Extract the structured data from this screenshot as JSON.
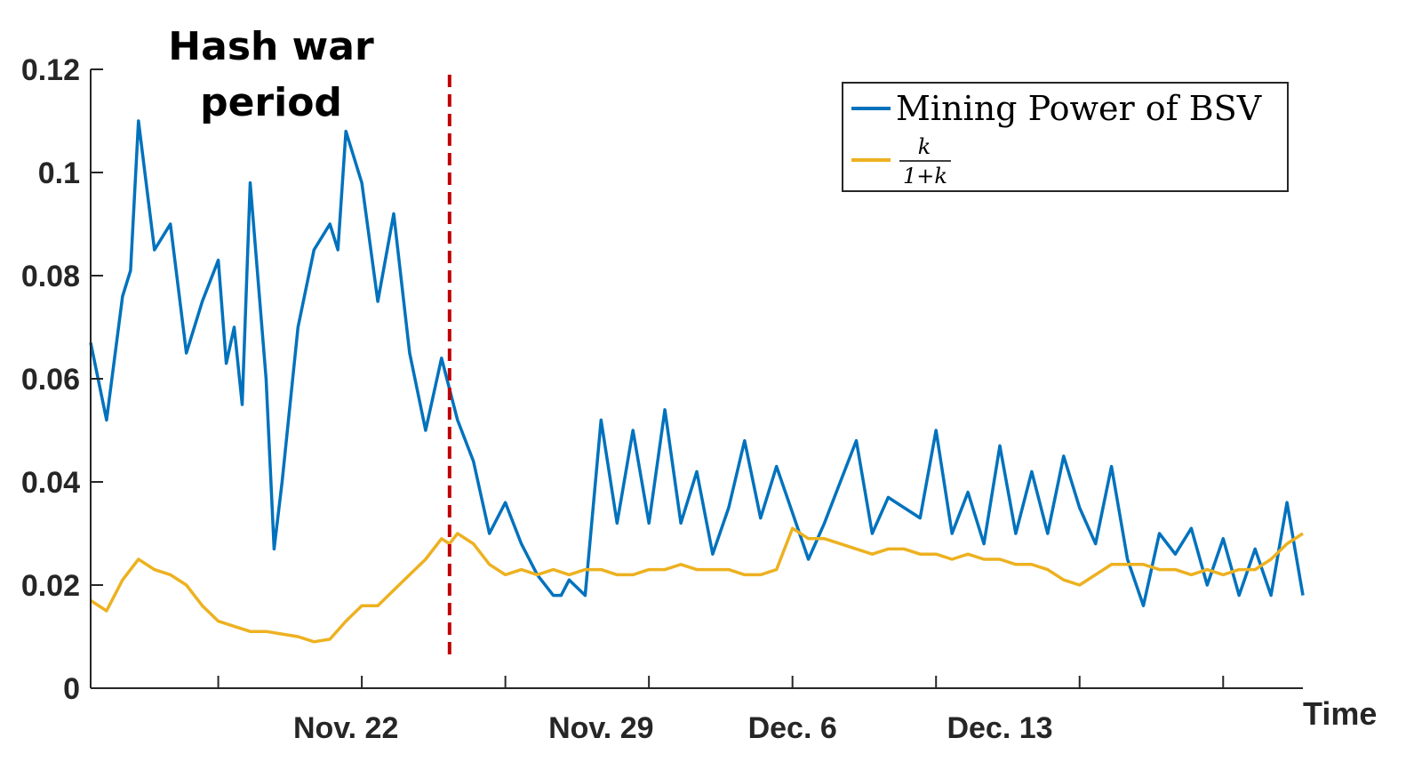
{
  "chart_data": {
    "type": "line",
    "xlabel": "Time",
    "ylabel": "",
    "ylim": [
      0,
      0.12
    ],
    "xlim": [
      "2018-11-12T12:00",
      "2018-12-20T12:00"
    ],
    "yticks": [
      0,
      0.02,
      0.04,
      0.06,
      0.08,
      0.1,
      0.12
    ],
    "ytick_labels": [
      "0",
      "0.02",
      "0.04",
      "0.06",
      "0.08",
      "0.1",
      "0.12"
    ],
    "xticks": [
      "2018-11-16T12:00",
      "2018-11-21T00:00",
      "2018-11-25T12:00",
      "2018-11-30T00:00",
      "2018-12-04T12:00",
      "2018-12-09T00:00",
      "2018-12-13T12:00",
      "2018-12-18T00:00"
    ],
    "xtick_labels": [
      {
        "at": "2018-11-20T12:00",
        "label": "Nov. 22"
      },
      {
        "at": "2018-11-28T12:00",
        "label": "Nov. 29"
      },
      {
        "at": "2018-12-04T12:00",
        "label": "Dec. 6"
      },
      {
        "at": "2018-12-11T00:00",
        "label": "Dec. 13"
      }
    ],
    "annotation": {
      "text_line1": "Hash war",
      "text_line2": "period",
      "marker_x": "2018-11-23T18:00",
      "marker_color": "#c00000"
    },
    "grid": false,
    "legend_position": "top-right",
    "series": [
      {
        "name": "Mining Power of BSV",
        "color": "#0072bd",
        "x": [
          "2018-11-12T12:00",
          "2018-11-13T00:00",
          "2018-11-13T12:00",
          "2018-11-13T18:00",
          "2018-11-14T00:00",
          "2018-11-14T12:00",
          "2018-11-15T00:00",
          "2018-11-15T12:00",
          "2018-11-16T00:00",
          "2018-11-16T12:00",
          "2018-11-16T18:00",
          "2018-11-17T00:00",
          "2018-11-17T06:00",
          "2018-11-17T12:00",
          "2018-11-18T00:00",
          "2018-11-18T06:00",
          "2018-11-18T12:00",
          "2018-11-19T00:00",
          "2018-11-19T12:00",
          "2018-11-20T00:00",
          "2018-11-20T06:00",
          "2018-11-20T12:00",
          "2018-11-21T00:00",
          "2018-11-21T12:00",
          "2018-11-22T00:00",
          "2018-11-22T12:00",
          "2018-11-23T00:00",
          "2018-11-23T12:00",
          "2018-11-23T18:00",
          "2018-11-24T00:00",
          "2018-11-24T12:00",
          "2018-11-25T00:00",
          "2018-11-25T12:00",
          "2018-11-26T00:00",
          "2018-11-26T12:00",
          "2018-11-27T00:00",
          "2018-11-27T06:00",
          "2018-11-27T12:00",
          "2018-11-28T00:00",
          "2018-11-28T12:00",
          "2018-11-29T00:00",
          "2018-11-29T12:00",
          "2018-11-30T00:00",
          "2018-11-30T12:00",
          "2018-12-01T00:00",
          "2018-12-01T12:00",
          "2018-12-02T00:00",
          "2018-12-02T12:00",
          "2018-12-03T00:00",
          "2018-12-03T12:00",
          "2018-12-04T00:00",
          "2018-12-04T12:00",
          "2018-12-05T00:00",
          "2018-12-05T12:00",
          "2018-12-06T00:00",
          "2018-12-06T12:00",
          "2018-12-07T00:00",
          "2018-12-07T12:00",
          "2018-12-08T00:00",
          "2018-12-08T12:00",
          "2018-12-09T00:00",
          "2018-12-09T12:00",
          "2018-12-10T00:00",
          "2018-12-10T12:00",
          "2018-12-11T00:00",
          "2018-12-11T12:00",
          "2018-12-12T00:00",
          "2018-12-12T12:00",
          "2018-12-13T00:00",
          "2018-12-13T12:00",
          "2018-12-14T00:00",
          "2018-12-14T12:00",
          "2018-12-15T00:00",
          "2018-12-15T12:00",
          "2018-12-16T00:00",
          "2018-12-16T12:00",
          "2018-12-17T00:00",
          "2018-12-17T12:00",
          "2018-12-18T00:00",
          "2018-12-18T12:00",
          "2018-12-19T00:00",
          "2018-12-19T12:00",
          "2018-12-20T00:00",
          "2018-12-20T12:00"
        ],
        "y": [
          0.067,
          0.052,
          0.076,
          0.081,
          0.11,
          0.085,
          0.09,
          0.065,
          0.075,
          0.083,
          0.063,
          0.07,
          0.055,
          0.098,
          0.06,
          0.027,
          0.04,
          0.07,
          0.085,
          0.09,
          0.085,
          0.108,
          0.098,
          0.075,
          0.092,
          0.065,
          0.05,
          0.064,
          0.058,
          0.052,
          0.044,
          0.03,
          0.036,
          0.028,
          0.022,
          0.018,
          0.018,
          0.021,
          0.018,
          0.052,
          0.032,
          0.05,
          0.032,
          0.054,
          0.032,
          0.042,
          0.026,
          0.035,
          0.048,
          0.033,
          0.043,
          0.034,
          0.025,
          0.032,
          0.04,
          0.048,
          0.03,
          0.037,
          0.035,
          0.033,
          0.05,
          0.03,
          0.038,
          0.028,
          0.047,
          0.03,
          0.042,
          0.03,
          0.045,
          0.035,
          0.028,
          0.043,
          0.025,
          0.016,
          0.03,
          0.026,
          0.031,
          0.02,
          0.029,
          0.018,
          0.027,
          0.018,
          0.036,
          0.018
        ]
      },
      {
        "name": "k/(1+k)",
        "color": "#edb120",
        "x": [
          "2018-11-12T12:00",
          "2018-11-13T00:00",
          "2018-11-13T12:00",
          "2018-11-14T00:00",
          "2018-11-14T12:00",
          "2018-11-15T00:00",
          "2018-11-15T12:00",
          "2018-11-16T00:00",
          "2018-11-16T12:00",
          "2018-11-17T00:00",
          "2018-11-17T12:00",
          "2018-11-18T00:00",
          "2018-11-18T12:00",
          "2018-11-19T00:00",
          "2018-11-19T12:00",
          "2018-11-20T00:00",
          "2018-11-20T12:00",
          "2018-11-21T00:00",
          "2018-11-21T12:00",
          "2018-11-22T00:00",
          "2018-11-22T12:00",
          "2018-11-23T00:00",
          "2018-11-23T12:00",
          "2018-11-23T18:00",
          "2018-11-24T00:00",
          "2018-11-24T12:00",
          "2018-11-25T00:00",
          "2018-11-25T12:00",
          "2018-11-26T00:00",
          "2018-11-26T12:00",
          "2018-11-27T00:00",
          "2018-11-27T12:00",
          "2018-11-28T00:00",
          "2018-11-28T12:00",
          "2018-11-29T00:00",
          "2018-11-29T12:00",
          "2018-11-30T00:00",
          "2018-11-30T12:00",
          "2018-12-01T00:00",
          "2018-12-01T12:00",
          "2018-12-02T00:00",
          "2018-12-02T12:00",
          "2018-12-03T00:00",
          "2018-12-03T12:00",
          "2018-12-04T00:00",
          "2018-12-04T12:00",
          "2018-12-05T00:00",
          "2018-12-05T12:00",
          "2018-12-06T00:00",
          "2018-12-06T12:00",
          "2018-12-07T00:00",
          "2018-12-07T12:00",
          "2018-12-08T00:00",
          "2018-12-08T12:00",
          "2018-12-09T00:00",
          "2018-12-09T12:00",
          "2018-12-10T00:00",
          "2018-12-10T12:00",
          "2018-12-11T00:00",
          "2018-12-11T12:00",
          "2018-12-12T00:00",
          "2018-12-12T12:00",
          "2018-12-13T00:00",
          "2018-12-13T12:00",
          "2018-12-14T00:00",
          "2018-12-14T12:00",
          "2018-12-15T00:00",
          "2018-12-15T12:00",
          "2018-12-16T00:00",
          "2018-12-16T12:00",
          "2018-12-17T00:00",
          "2018-12-17T12:00",
          "2018-12-18T00:00",
          "2018-12-18T12:00",
          "2018-12-19T00:00",
          "2018-12-19T12:00",
          "2018-12-20T00:00",
          "2018-12-20T12:00"
        ],
        "y": [
          0.017,
          0.015,
          0.021,
          0.025,
          0.023,
          0.022,
          0.02,
          0.016,
          0.013,
          0.012,
          0.011,
          0.011,
          0.0105,
          0.01,
          0.009,
          0.0095,
          0.013,
          0.016,
          0.016,
          0.019,
          0.022,
          0.025,
          0.029,
          0.028,
          0.03,
          0.028,
          0.024,
          0.022,
          0.023,
          0.022,
          0.023,
          0.022,
          0.023,
          0.023,
          0.022,
          0.022,
          0.023,
          0.023,
          0.024,
          0.023,
          0.023,
          0.023,
          0.022,
          0.022,
          0.023,
          0.031,
          0.029,
          0.029,
          0.028,
          0.027,
          0.026,
          0.027,
          0.027,
          0.026,
          0.026,
          0.025,
          0.026,
          0.025,
          0.025,
          0.024,
          0.024,
          0.023,
          0.021,
          0.02,
          0.022,
          0.024,
          0.024,
          0.024,
          0.023,
          0.023,
          0.022,
          0.023,
          0.022,
          0.023,
          0.023,
          0.025,
          0.028,
          0.03
        ]
      }
    ]
  },
  "legend": {
    "entries": [
      {
        "key": "mining",
        "label": "Mining Power of BSV"
      },
      {
        "key": "ratio",
        "numerator": "k",
        "denominator": "1+k"
      }
    ]
  }
}
